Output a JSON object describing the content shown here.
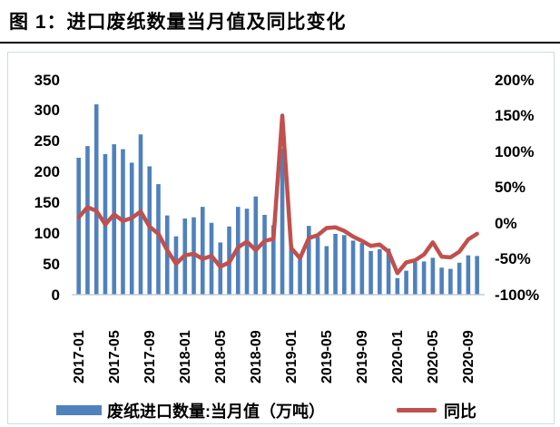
{
  "header": {
    "title": "图 1：进口废纸数量当月值及同比变化"
  },
  "legend": {
    "bars": "废纸进口数量:当月值（万吨）",
    "line": "同比"
  },
  "colors": {
    "bar": "#4F81BD",
    "line": "#C0504D",
    "baseline": "#b7c4d4"
  },
  "chart_data": {
    "type": "bar",
    "title": "进口废纸数量当月值及同比变化",
    "x": [
      "2017-01",
      "2017-02",
      "2017-03",
      "2017-04",
      "2017-05",
      "2017-06",
      "2017-07",
      "2017-08",
      "2017-09",
      "2017-10",
      "2017-11",
      "2017-12",
      "2018-01",
      "2018-02",
      "2018-03",
      "2018-04",
      "2018-05",
      "2018-06",
      "2018-07",
      "2018-08",
      "2018-09",
      "2018-10",
      "2018-11",
      "2018-12",
      "2019-01",
      "2019-02",
      "2019-03",
      "2019-04",
      "2019-05",
      "2019-06",
      "2019-07",
      "2019-08",
      "2019-09",
      "2019-10",
      "2019-11",
      "2019-12",
      "2020-01",
      "2020-02",
      "2020-03",
      "2020-04",
      "2020-05",
      "2020-06",
      "2020-07",
      "2020-08",
      "2020-09",
      "2020-10"
    ],
    "x_tick_every": 4,
    "x_tick_labels": [
      "2017-01",
      "2017-05",
      "2017-09",
      "2018-01",
      "2018-05",
      "2018-09",
      "2019-01",
      "2019-05",
      "2019-09",
      "2020-01",
      "2020-05",
      "2020-09"
    ],
    "series": [
      {
        "name": "废纸进口数量:当月值（万吨）",
        "type": "bar",
        "axis": "left",
        "color": "#4F81BD",
        "values": [
          223,
          242,
          310,
          229,
          245,
          237,
          215,
          261,
          209,
          180,
          129,
          95,
          124,
          126,
          143,
          117,
          85,
          111,
          143,
          140,
          160,
          130,
          113,
          238,
          81,
          62,
          112,
          94,
          79,
          99,
          97,
          88,
          84,
          71,
          74,
          75,
          27,
          39,
          53,
          54,
          60,
          44,
          42,
          52,
          64,
          63
        ]
      },
      {
        "name": "同比",
        "type": "line",
        "axis": "right",
        "color": "#C0504D",
        "unit": "%",
        "values": [
          8,
          22,
          17,
          -2,
          12,
          3,
          7,
          16,
          -5,
          -15,
          -38,
          -57,
          -45,
          -43,
          -50,
          -46,
          -61,
          -55,
          -34,
          -26,
          -38,
          -25,
          -22,
          150,
          -35,
          -49,
          -21,
          -17,
          -7,
          -6,
          -11,
          -19,
          -25,
          -32,
          -30,
          -40,
          -70,
          -55,
          -52,
          -44,
          -27,
          -47,
          -48,
          -40,
          -23,
          -15
        ]
      }
    ],
    "left_axis": {
      "min": 0,
      "max": 350,
      "ticks": [
        350,
        300,
        250,
        200,
        150,
        100,
        50,
        0
      ]
    },
    "right_axis": {
      "min_pct": -100,
      "max_pct": 200,
      "ticks": [
        "200%",
        "150%",
        "100%",
        "50%",
        "0%",
        "-50%",
        "-100%"
      ]
    },
    "grid": false,
    "legend_position": "bottom"
  }
}
